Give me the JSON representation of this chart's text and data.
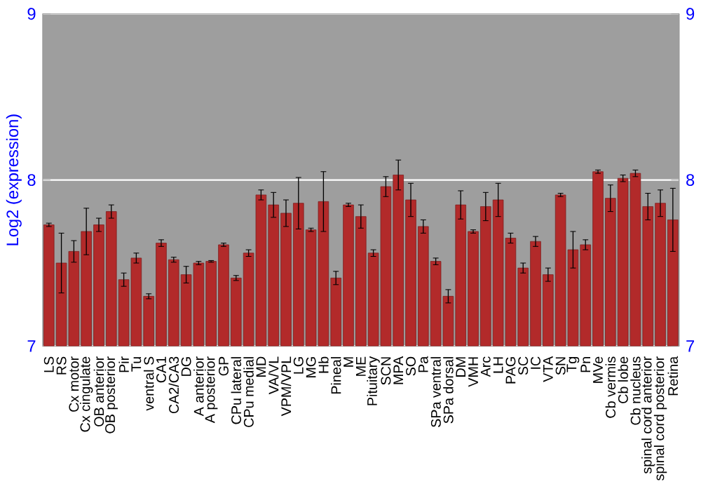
{
  "chart_data": {
    "type": "bar",
    "ylabel": "Log2 (expression)",
    "categories": [
      "LS",
      "RS",
      "Cx motor",
      "Cx cingulate",
      "OB anterior",
      "OB posterior",
      "Pir",
      "Tu",
      "ventral S",
      "CA1",
      "CA2/CA3",
      "DG",
      "A anterior",
      "A posterior",
      "GP",
      "CPu lateral",
      "CPu medial",
      "MD",
      "VA/VL",
      "VPM/VPL",
      "LG",
      "MG",
      "Hb",
      "Pineal",
      "M",
      "ME",
      "Pituitary",
      "SCN",
      "MPA",
      "SO",
      "Pa",
      "SPa ventral",
      "SPa dorsal",
      "DM",
      "VMH",
      "Arc",
      "LH",
      "PAG",
      "SC",
      "IC",
      "VTA",
      "SN",
      "Tg",
      "Pn",
      "MVe",
      "Cb vermis",
      "Cb lobe",
      "Cb nucleus",
      "spinal cord anterior",
      "spinal cord posterior",
      "Retina"
    ],
    "values": [
      7.73,
      7.5,
      7.57,
      7.69,
      7.73,
      7.81,
      7.4,
      7.53,
      7.3,
      7.62,
      7.52,
      7.43,
      7.5,
      7.51,
      7.61,
      7.41,
      7.56,
      7.91,
      7.85,
      7.8,
      7.86,
      7.7,
      7.87,
      7.41,
      7.85,
      7.78,
      7.56,
      7.96,
      8.03,
      7.88,
      7.72,
      7.51,
      7.3,
      7.85,
      7.69,
      7.84,
      7.88,
      7.65,
      7.47,
      7.63,
      7.43,
      7.91,
      7.58,
      7.61,
      8.05,
      7.89,
      8.01,
      8.04,
      7.84,
      7.86,
      7.76
    ],
    "errors": [
      0.01,
      0.18,
      0.065,
      0.14,
      0.04,
      0.04,
      0.04,
      0.03,
      0.015,
      0.02,
      0.015,
      0.05,
      0.01,
      0.005,
      0.01,
      0.015,
      0.02,
      0.03,
      0.075,
      0.08,
      0.155,
      0.01,
      0.18,
      0.04,
      0.01,
      0.07,
      0.02,
      0.06,
      0.09,
      0.1,
      0.04,
      0.02,
      0.04,
      0.085,
      0.01,
      0.085,
      0.1,
      0.03,
      0.03,
      0.03,
      0.04,
      0.01,
      0.11,
      0.03,
      0.01,
      0.08,
      0.02,
      0.02,
      0.08,
      0.08,
      0.19
    ],
    "color": "#b22a2a",
    "ylim": [
      7,
      9
    ],
    "yticks": [
      7,
      8,
      9
    ],
    "y2lim": [
      7,
      9
    ],
    "y2ticks": [
      7,
      8,
      9
    ],
    "grid": "y"
  }
}
